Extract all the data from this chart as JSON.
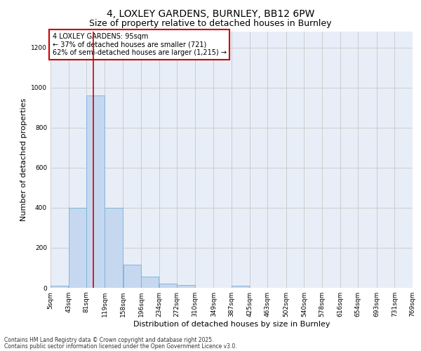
{
  "title_line1": "4, LOXLEY GARDENS, BURNLEY, BB12 6PW",
  "title_line2": "Size of property relative to detached houses in Burnley",
  "xlabel": "Distribution of detached houses by size in Burnley",
  "ylabel": "Number of detached properties",
  "annotation_line1": "4 LOXLEY GARDENS: 95sqm",
  "annotation_line2": "← 37% of detached houses are smaller (721)",
  "annotation_line3": "62% of semi-detached houses are larger (1,215) →",
  "property_size": 95,
  "footnote1": "Contains HM Land Registry data © Crown copyright and database right 2025.",
  "footnote2": "Contains public sector information licensed under the Open Government Licence v3.0.",
  "bar_edges": [
    5,
    43,
    81,
    119,
    158,
    196,
    234,
    272,
    310,
    349,
    387,
    425,
    463,
    502,
    540,
    578,
    616,
    654,
    693,
    731,
    769
  ],
  "bar_heights": [
    10,
    400,
    960,
    400,
    115,
    55,
    20,
    15,
    0,
    0,
    10,
    0,
    0,
    0,
    0,
    0,
    0,
    0,
    0,
    0
  ],
  "bar_color": "#c5d8f0",
  "bar_edge_color": "#7bafd4",
  "red_line_color": "#cc0000",
  "grid_color": "#cccccc",
  "ylim": [
    0,
    1280
  ],
  "yticks": [
    0,
    200,
    400,
    600,
    800,
    1000,
    1200
  ],
  "background_color": "#e8eef8",
  "annotation_box_color": "#cc0000",
  "title_fontsize": 10,
  "subtitle_fontsize": 9,
  "tick_label_fontsize": 6.5,
  "axis_label_fontsize": 8,
  "footnote_fontsize": 5.5
}
